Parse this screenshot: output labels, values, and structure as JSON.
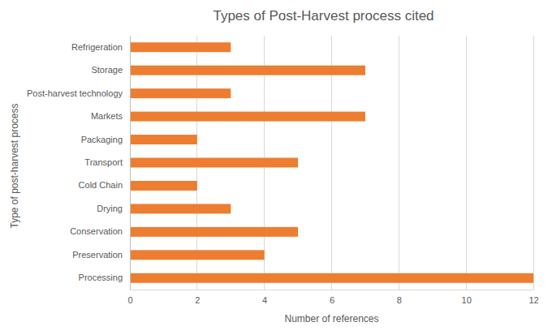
{
  "chart_data": {
    "type": "bar",
    "orientation": "horizontal",
    "title": "Types of Post-Harvest process cited",
    "x_label": "Number of references",
    "y_label": "Type of post-harvest process",
    "categories": [
      "Refrigeration",
      "Storage",
      "Post-harvest technology",
      "Markets",
      "Packaging",
      "Transport",
      "Cold Chain",
      "Drying",
      "Conservation",
      "Preservation",
      "Processing"
    ],
    "values": [
      3,
      7,
      3,
      7,
      2,
      5,
      2,
      3,
      5,
      4,
      12
    ],
    "color": "#ed7d31",
    "xlim": [
      0,
      12
    ],
    "xticks": [
      0,
      2,
      4,
      6,
      8,
      10,
      12
    ],
    "grid": true
  }
}
